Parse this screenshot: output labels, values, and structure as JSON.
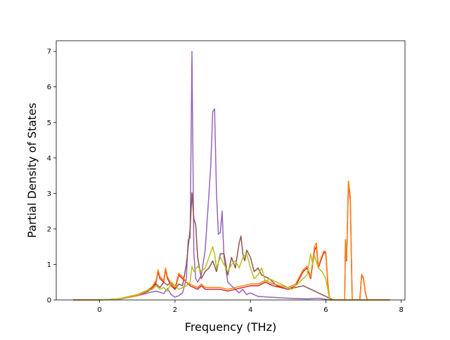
{
  "chart_data": {
    "type": "line",
    "title": "",
    "xlabel": "Frequency (THz)",
    "ylabel": "Partial Density of States",
    "xlim": [
      -1.15,
      8.1
    ],
    "ylim": [
      0,
      7.3
    ],
    "x_ticks": [
      0,
      2,
      4,
      6,
      8
    ],
    "y_ticks": [
      0,
      1,
      2,
      3,
      4,
      5,
      6,
      7
    ],
    "grid": false,
    "legend": "none",
    "series": [
      {
        "color": "#9467bd",
        "points": [
          [
            -0.7,
            0
          ],
          [
            0,
            0
          ],
          [
            0.5,
            0.03
          ],
          [
            1.0,
            0.12
          ],
          [
            1.3,
            0.2
          ],
          [
            1.5,
            0.25
          ],
          [
            1.7,
            0.18
          ],
          [
            1.8,
            0.32
          ],
          [
            1.9,
            0.15
          ],
          [
            2.0,
            0.08
          ],
          [
            2.1,
            0.12
          ],
          [
            2.2,
            0.2
          ],
          [
            2.3,
            0.6
          ],
          [
            2.35,
            1.7
          ],
          [
            2.4,
            1.75
          ],
          [
            2.45,
            7.0
          ],
          [
            2.5,
            1.3
          ],
          [
            2.55,
            0.6
          ],
          [
            2.6,
            0.5
          ],
          [
            2.7,
            0.7
          ],
          [
            2.8,
            1.4
          ],
          [
            2.85,
            2.2
          ],
          [
            2.9,
            3.0
          ],
          [
            2.95,
            3.8
          ],
          [
            3.0,
            5.3
          ],
          [
            3.05,
            5.38
          ],
          [
            3.1,
            3.0
          ],
          [
            3.15,
            1.85
          ],
          [
            3.2,
            1.9
          ],
          [
            3.25,
            2.5
          ],
          [
            3.3,
            1.2
          ],
          [
            3.4,
            0.5
          ],
          [
            3.5,
            0.4
          ],
          [
            3.6,
            0.3
          ],
          [
            3.7,
            0.2
          ],
          [
            3.8,
            0.3
          ],
          [
            3.9,
            0.15
          ],
          [
            4.0,
            0.2
          ],
          [
            4.2,
            0.1
          ],
          [
            4.5,
            0.08
          ],
          [
            5.0,
            0.05
          ],
          [
            5.5,
            0.03
          ],
          [
            5.8,
            0.05
          ],
          [
            6.0,
            0.02
          ],
          [
            6.2,
            0
          ],
          [
            7.7,
            0
          ]
        ]
      },
      {
        "color": "#8c564b",
        "points": [
          [
            -0.7,
            0
          ],
          [
            0,
            0
          ],
          [
            0.5,
            0.03
          ],
          [
            1.0,
            0.15
          ],
          [
            1.3,
            0.25
          ],
          [
            1.5,
            0.45
          ],
          [
            1.6,
            0.35
          ],
          [
            1.7,
            0.5
          ],
          [
            1.8,
            0.42
          ],
          [
            1.9,
            0.5
          ],
          [
            2.0,
            0.3
          ],
          [
            2.1,
            0.45
          ],
          [
            2.2,
            0.4
          ],
          [
            2.3,
            1.0
          ],
          [
            2.35,
            1.5
          ],
          [
            2.4,
            2.0
          ],
          [
            2.45,
            3.02
          ],
          [
            2.5,
            2.3
          ],
          [
            2.55,
            2.1
          ],
          [
            2.6,
            1.2
          ],
          [
            2.7,
            0.6
          ],
          [
            2.8,
            0.8
          ],
          [
            2.9,
            0.9
          ],
          [
            3.0,
            1.1
          ],
          [
            3.1,
            0.8
          ],
          [
            3.2,
            1.3
          ],
          [
            3.3,
            1.3
          ],
          [
            3.4,
            0.7
          ],
          [
            3.5,
            1.2
          ],
          [
            3.6,
            0.9
          ],
          [
            3.7,
            1.6
          ],
          [
            3.75,
            1.8
          ],
          [
            3.8,
            1.3
          ],
          [
            3.85,
            1.1
          ],
          [
            3.9,
            1.4
          ],
          [
            4.0,
            1.2
          ],
          [
            4.1,
            0.8
          ],
          [
            4.2,
            0.9
          ],
          [
            4.3,
            0.7
          ],
          [
            4.5,
            0.6
          ],
          [
            4.7,
            0.4
          ],
          [
            5.0,
            0.3
          ],
          [
            5.2,
            0.35
          ],
          [
            5.4,
            0.4
          ],
          [
            5.6,
            0.3
          ],
          [
            5.8,
            0.2
          ],
          [
            6.0,
            0.1
          ],
          [
            6.1,
            0.05
          ],
          [
            6.2,
            0
          ],
          [
            7.7,
            0
          ]
        ]
      },
      {
        "color": "#d62728",
        "points": [
          [
            -0.7,
            0
          ],
          [
            0,
            0
          ],
          [
            0.5,
            0.02
          ],
          [
            1.0,
            0.12
          ],
          [
            1.2,
            0.2
          ],
          [
            1.4,
            0.35
          ],
          [
            1.5,
            0.5
          ],
          [
            1.55,
            0.8
          ],
          [
            1.6,
            0.6
          ],
          [
            1.7,
            0.5
          ],
          [
            1.75,
            0.85
          ],
          [
            1.8,
            0.6
          ],
          [
            1.9,
            0.4
          ],
          [
            2.0,
            0.3
          ],
          [
            2.1,
            0.7
          ],
          [
            2.2,
            0.6
          ],
          [
            2.3,
            0.5
          ],
          [
            2.4,
            0.4
          ],
          [
            2.5,
            0.35
          ],
          [
            2.6,
            0.3
          ],
          [
            2.7,
            0.4
          ],
          [
            2.8,
            0.3
          ],
          [
            3.0,
            0.3
          ],
          [
            3.2,
            0.3
          ],
          [
            3.4,
            0.25
          ],
          [
            3.6,
            0.3
          ],
          [
            3.8,
            0.35
          ],
          [
            4.0,
            0.4
          ],
          [
            4.2,
            0.4
          ],
          [
            4.4,
            0.5
          ],
          [
            4.6,
            0.4
          ],
          [
            4.8,
            0.35
          ],
          [
            5.0,
            0.3
          ],
          [
            5.2,
            0.4
          ],
          [
            5.4,
            0.8
          ],
          [
            5.5,
            0.9
          ],
          [
            5.6,
            0.6
          ],
          [
            5.7,
            1.4
          ],
          [
            5.75,
            1.5
          ],
          [
            5.8,
            0.9
          ],
          [
            5.9,
            1.2
          ],
          [
            5.95,
            1.35
          ],
          [
            6.0,
            1.3
          ],
          [
            6.05,
            0.5
          ],
          [
            6.1,
            0
          ],
          [
            6.5,
            0
          ],
          [
            6.52,
            1.6
          ],
          [
            6.55,
            1.1
          ],
          [
            6.6,
            3.3
          ],
          [
            6.65,
            2.8
          ],
          [
            6.7,
            0
          ],
          [
            6.9,
            0
          ],
          [
            6.95,
            0.7
          ],
          [
            7.0,
            0.6
          ],
          [
            7.05,
            0.2
          ],
          [
            7.1,
            0
          ],
          [
            7.7,
            0
          ]
        ]
      },
      {
        "color": "#ff7f0e",
        "points": [
          [
            -0.7,
            0
          ],
          [
            0,
            0
          ],
          [
            0.5,
            0.02
          ],
          [
            1.0,
            0.12
          ],
          [
            1.2,
            0.22
          ],
          [
            1.4,
            0.38
          ],
          [
            1.5,
            0.55
          ],
          [
            1.55,
            0.85
          ],
          [
            1.6,
            0.65
          ],
          [
            1.7,
            0.55
          ],
          [
            1.75,
            0.9
          ],
          [
            1.8,
            0.65
          ],
          [
            1.9,
            0.45
          ],
          [
            2.0,
            0.35
          ],
          [
            2.1,
            0.75
          ],
          [
            2.2,
            0.65
          ],
          [
            2.3,
            0.5
          ],
          [
            2.4,
            0.45
          ],
          [
            2.5,
            0.4
          ],
          [
            2.6,
            0.35
          ],
          [
            2.7,
            0.45
          ],
          [
            2.8,
            0.35
          ],
          [
            3.0,
            0.35
          ],
          [
            3.2,
            0.35
          ],
          [
            3.4,
            0.3
          ],
          [
            3.6,
            0.35
          ],
          [
            3.8,
            0.4
          ],
          [
            4.0,
            0.45
          ],
          [
            4.2,
            0.45
          ],
          [
            4.4,
            0.55
          ],
          [
            4.6,
            0.45
          ],
          [
            4.8,
            0.4
          ],
          [
            5.0,
            0.35
          ],
          [
            5.2,
            0.45
          ],
          [
            5.4,
            0.85
          ],
          [
            5.5,
            0.95
          ],
          [
            5.6,
            0.65
          ],
          [
            5.7,
            1.5
          ],
          [
            5.75,
            1.6
          ],
          [
            5.8,
            0.95
          ],
          [
            5.9,
            1.25
          ],
          [
            5.95,
            1.38
          ],
          [
            6.0,
            1.35
          ],
          [
            6.05,
            0.55
          ],
          [
            6.1,
            0
          ],
          [
            6.5,
            0
          ],
          [
            6.52,
            1.7
          ],
          [
            6.55,
            1.15
          ],
          [
            6.6,
            3.35
          ],
          [
            6.65,
            2.9
          ],
          [
            6.7,
            0
          ],
          [
            6.9,
            0
          ],
          [
            6.95,
            0.72
          ],
          [
            7.0,
            0.62
          ],
          [
            7.05,
            0.22
          ],
          [
            7.1,
            0
          ],
          [
            7.7,
            0
          ]
        ]
      },
      {
        "color": "#bcbd22",
        "points": [
          [
            -0.7,
            0
          ],
          [
            0,
            0
          ],
          [
            0.5,
            0.03
          ],
          [
            1.0,
            0.15
          ],
          [
            1.2,
            0.25
          ],
          [
            1.4,
            0.3
          ],
          [
            1.5,
            0.4
          ],
          [
            1.6,
            0.3
          ],
          [
            1.7,
            0.35
          ],
          [
            1.8,
            0.25
          ],
          [
            1.9,
            0.5
          ],
          [
            2.0,
            0.4
          ],
          [
            2.1,
            0.3
          ],
          [
            2.2,
            0.35
          ],
          [
            2.3,
            0.4
          ],
          [
            2.4,
            0.5
          ],
          [
            2.45,
            0.95
          ],
          [
            2.5,
            0.8
          ],
          [
            2.6,
            0.95
          ],
          [
            2.7,
            0.8
          ],
          [
            2.8,
            0.9
          ],
          [
            2.9,
            1.2
          ],
          [
            3.0,
            1.5
          ],
          [
            3.05,
            1.3
          ],
          [
            3.1,
            0.9
          ],
          [
            3.2,
            1.2
          ],
          [
            3.3,
            1.0
          ],
          [
            3.4,
            0.8
          ],
          [
            3.5,
            1.0
          ],
          [
            3.6,
            1.1
          ],
          [
            3.7,
            0.9
          ],
          [
            3.8,
            1.2
          ],
          [
            3.9,
            1.3
          ],
          [
            4.0,
            0.9
          ],
          [
            4.1,
            0.6
          ],
          [
            4.2,
            0.7
          ],
          [
            4.3,
            0.9
          ],
          [
            4.4,
            0.5
          ],
          [
            4.5,
            0.6
          ],
          [
            4.7,
            0.5
          ],
          [
            4.9,
            0.4
          ],
          [
            5.1,
            0.3
          ],
          [
            5.3,
            0.5
          ],
          [
            5.5,
            0.7
          ],
          [
            5.6,
            1.3
          ],
          [
            5.65,
            1.0
          ],
          [
            5.7,
            1.25
          ],
          [
            5.8,
            0.9
          ],
          [
            5.9,
            0.8
          ],
          [
            6.0,
            0.6
          ],
          [
            6.05,
            0.3
          ],
          [
            6.1,
            0
          ],
          [
            7.7,
            0
          ]
        ]
      }
    ]
  }
}
